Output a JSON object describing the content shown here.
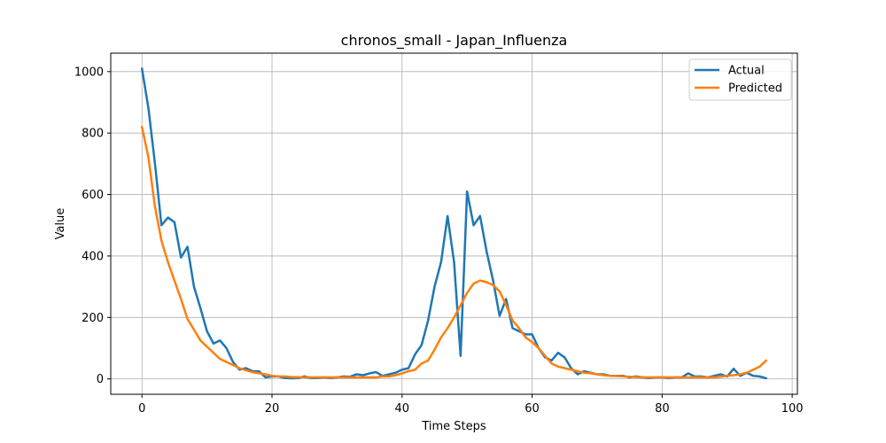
{
  "chart_data": {
    "type": "line",
    "title": "chronos_small - Japan_Influenza",
    "xlabel": "Time Steps",
    "ylabel": "Value",
    "xlim": [
      -4.8,
      100.8
    ],
    "ylim": [
      -50,
      1060
    ],
    "xticks": [
      0,
      20,
      40,
      60,
      80,
      100
    ],
    "yticks": [
      0,
      200,
      400,
      600,
      800,
      1000
    ],
    "grid": true,
    "legend_position": "top-right",
    "series": [
      {
        "name": "Actual",
        "color": "#1f77b4",
        "x": [
          0,
          1,
          2,
          3,
          4,
          5,
          6,
          7,
          8,
          9,
          10,
          11,
          12,
          13,
          14,
          15,
          16,
          17,
          18,
          19,
          20,
          21,
          22,
          23,
          24,
          25,
          26,
          27,
          28,
          29,
          30,
          31,
          32,
          33,
          34,
          35,
          36,
          37,
          38,
          39,
          40,
          41,
          42,
          43,
          44,
          45,
          46,
          47,
          48,
          49,
          50,
          51,
          52,
          53,
          54,
          55,
          56,
          57,
          58,
          59,
          60,
          61,
          62,
          63,
          64,
          65,
          66,
          67,
          68,
          69,
          70,
          71,
          72,
          73,
          74,
          75,
          76,
          77,
          78,
          79,
          80,
          81,
          82,
          83,
          84,
          85,
          86,
          87,
          88,
          89,
          90,
          91,
          92,
          93,
          94,
          95,
          96
        ],
        "values": [
          1010,
          880,
          700,
          500,
          525,
          510,
          395,
          430,
          300,
          230,
          155,
          115,
          125,
          100,
          55,
          30,
          35,
          25,
          25,
          5,
          8,
          8,
          3,
          2,
          3,
          8,
          3,
          3,
          5,
          3,
          5,
          8,
          7,
          15,
          12,
          18,
          22,
          10,
          15,
          20,
          30,
          35,
          80,
          110,
          190,
          300,
          380,
          530,
          380,
          75,
          610,
          500,
          530,
          415,
          320,
          205,
          260,
          165,
          155,
          145,
          145,
          100,
          70,
          60,
          85,
          70,
          35,
          15,
          25,
          20,
          15,
          15,
          10,
          10,
          10,
          5,
          8,
          5,
          3,
          5,
          5,
          3,
          5,
          5,
          18,
          8,
          8,
          5,
          10,
          15,
          8,
          33,
          10,
          20,
          10,
          8,
          2
        ]
      },
      {
        "name": "Predicted",
        "color": "#ff7f0e",
        "x": [
          0,
          1,
          2,
          3,
          4,
          5,
          6,
          7,
          8,
          9,
          10,
          11,
          12,
          13,
          14,
          15,
          16,
          17,
          18,
          19,
          20,
          21,
          22,
          23,
          24,
          25,
          26,
          27,
          28,
          29,
          30,
          31,
          32,
          33,
          34,
          35,
          36,
          37,
          38,
          39,
          40,
          41,
          42,
          43,
          44,
          45,
          46,
          47,
          48,
          49,
          50,
          51,
          52,
          53,
          54,
          55,
          56,
          57,
          58,
          59,
          60,
          61,
          62,
          63,
          64,
          65,
          66,
          67,
          68,
          69,
          70,
          71,
          72,
          73,
          74,
          75,
          76,
          77,
          78,
          79,
          80,
          81,
          82,
          83,
          84,
          85,
          86,
          87,
          88,
          89,
          90,
          91,
          92,
          93,
          94,
          95,
          96
        ],
        "values": [
          820,
          720,
          560,
          450,
          380,
          320,
          260,
          195,
          160,
          125,
          105,
          85,
          65,
          55,
          45,
          35,
          28,
          22,
          18,
          15,
          10,
          8,
          8,
          6,
          6,
          5,
          5,
          5,
          5,
          5,
          5,
          5,
          5,
          5,
          5,
          5,
          5,
          8,
          8,
          12,
          18,
          25,
          30,
          50,
          60,
          95,
          135,
          165,
          200,
          240,
          280,
          310,
          320,
          315,
          305,
          285,
          240,
          190,
          165,
          135,
          120,
          100,
          75,
          50,
          40,
          35,
          30,
          25,
          20,
          18,
          15,
          12,
          10,
          9,
          8,
          7,
          6,
          5,
          5,
          5,
          5,
          5,
          5,
          5,
          5,
          5,
          5,
          5,
          5,
          7,
          10,
          12,
          15,
          20,
          30,
          40,
          60
        ]
      }
    ]
  }
}
